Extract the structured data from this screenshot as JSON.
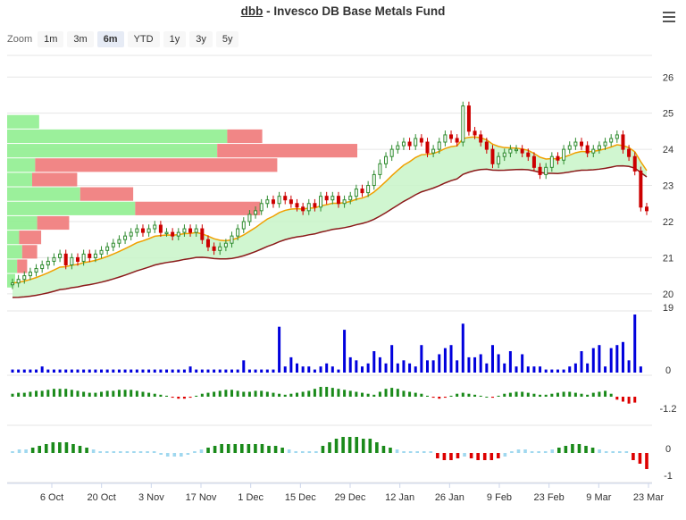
{
  "header": {
    "ticker": "dbb",
    "title_rest": " - Invesco DB Base Metals Fund"
  },
  "zoom": {
    "label": "Zoom",
    "buttons": [
      "1m",
      "3m",
      "6m",
      "YTD",
      "1y",
      "3y",
      "5y"
    ],
    "active": "6m"
  },
  "colors": {
    "up": "#2e8b2e",
    "down": "#cc0000",
    "volume": "#0000dd",
    "ema": "#f0a000",
    "base": "#8b1a1a",
    "cloud_up": "#c8f5c8",
    "cloud_down": "#f5c8c8",
    "vp_buy": "#90ee90",
    "vp_sell": "#f08080",
    "hist_pos": "#1a8a1a",
    "hist_neg": "#dd0000",
    "hist_neutral": "#a0d8ef"
  },
  "chart_data": {
    "type": "candlestick",
    "x_axis_labels": [
      "6 Oct",
      "20 Oct",
      "3 Nov",
      "17 Nov",
      "1 Dec",
      "15 Dec",
      "29 Dec",
      "12 Jan",
      "26 Jan",
      "9 Feb",
      "23 Feb",
      "9 Mar",
      "23 Mar"
    ],
    "price_axis": {
      "ticks": [
        "26",
        "25",
        "24",
        "23",
        "22",
        "21",
        "20"
      ],
      "range": [
        19.6,
        26.6
      ]
    },
    "volume_axis": {
      "ticks": [
        "19",
        "0"
      ]
    },
    "osc1_axis": {
      "ticks": [
        "-1.2"
      ]
    },
    "osc2_axis": {
      "ticks": [
        "0",
        "-1"
      ]
    },
    "price_close": [
      20.3,
      20.4,
      20.5,
      20.6,
      20.7,
      20.8,
      20.9,
      21.0,
      21.1,
      20.8,
      21.0,
      20.9,
      21.1,
      21.0,
      21.1,
      21.2,
      21.3,
      21.4,
      21.5,
      21.6,
      21.7,
      21.8,
      21.7,
      21.8,
      21.9,
      21.7,
      21.7,
      21.6,
      21.7,
      21.8,
      21.7,
      21.8,
      21.5,
      21.3,
      21.2,
      21.3,
      21.4,
      21.6,
      21.8,
      22.0,
      22.2,
      22.3,
      22.5,
      22.6,
      22.5,
      22.7,
      22.6,
      22.5,
      22.4,
      22.3,
      22.5,
      22.4,
      22.7,
      22.6,
      22.7,
      22.5,
      22.6,
      22.7,
      22.9,
      22.8,
      23.0,
      23.3,
      23.6,
      23.8,
      24.0,
      24.1,
      24.2,
      24.1,
      24.3,
      24.2,
      23.9,
      24.0,
      24.2,
      24.4,
      24.3,
      24.2,
      25.2,
      24.5,
      24.4,
      24.2,
      24.0,
      23.6,
      23.8,
      23.9,
      24.0,
      24.0,
      23.9,
      23.8,
      23.5,
      23.3,
      23.5,
      23.8,
      23.7,
      24.0,
      24.1,
      24.2,
      24.1,
      23.9,
      24.0,
      24.1,
      24.2,
      24.3,
      24.4,
      24.0,
      23.8,
      23.4,
      22.4,
      22.3
    ],
    "volume": [
      1,
      1,
      1,
      1,
      1,
      2,
      1,
      1,
      1,
      1,
      1,
      1,
      1,
      1,
      1,
      1,
      1,
      1,
      1,
      1,
      1,
      1,
      1,
      1,
      1,
      1,
      1,
      1,
      1,
      1,
      2,
      1,
      1,
      1,
      1,
      1,
      1,
      1,
      1,
      4,
      1,
      1,
      1,
      1,
      1,
      15,
      2,
      5,
      3,
      2,
      2,
      1,
      2,
      3,
      2,
      1,
      14,
      5,
      4,
      2,
      3,
      7,
      5,
      3,
      9,
      3,
      4,
      3,
      2,
      9,
      4,
      4,
      6,
      8,
      9,
      4,
      16,
      5,
      5,
      6,
      3,
      9,
      6,
      3,
      7,
      2,
      6,
      2,
      2,
      2,
      1,
      1,
      1,
      1,
      2,
      3,
      7,
      3,
      8,
      9,
      2,
      8,
      9,
      10,
      4,
      19,
      2
    ],
    "osc1": [
      0.3,
      0.4,
      0.4,
      0.5,
      0.6,
      0.6,
      0.7,
      0.8,
      0.8,
      0.8,
      0.7,
      0.6,
      0.5,
      0.4,
      0.4,
      0.5,
      0.6,
      0.6,
      0.7,
      0.7,
      0.7,
      0.6,
      0.5,
      0.4,
      0.3,
      0.2,
      0.1,
      -0.1,
      -0.2,
      -0.2,
      -0.1,
      0.1,
      0.3,
      0.4,
      0.5,
      0.6,
      0.7,
      0.7,
      0.6,
      0.5,
      0.5,
      0.6,
      0.6,
      0.5,
      0.4,
      0.3,
      0.2,
      0.3,
      0.4,
      0.5,
      0.6,
      0.8,
      1.0,
      1.0,
      0.9,
      0.8,
      0.7,
      0.6,
      0.5,
      0.4,
      0.3,
      0.2,
      0.5,
      0.8,
      0.9,
      0.8,
      0.6,
      0.5,
      0.4,
      0.3,
      0.1,
      -0.1,
      -0.2,
      -0.1,
      0.1,
      0.3,
      0.4,
      0.3,
      0.2,
      0.1,
      0.0,
      -0.1,
      0.1,
      0.3,
      0.4,
      0.5,
      0.5,
      0.4,
      0.3,
      0.2,
      0.2,
      0.3,
      0.4,
      0.5,
      0.5,
      0.4,
      0.3,
      0.2,
      0.4,
      0.5,
      0.6,
      0.3,
      -0.3,
      -0.5,
      -0.7,
      -0.6
    ],
    "osc2": [
      0.1,
      0.2,
      0.2,
      0.3,
      0.4,
      0.5,
      0.6,
      0.6,
      0.6,
      0.5,
      0.4,
      0.3,
      0.2,
      0.1,
      0.1,
      0.1,
      0.1,
      0.1,
      0.1,
      0.1,
      0.1,
      0.0,
      -0.1,
      -0.2,
      -0.2,
      -0.2,
      -0.1,
      0.1,
      0.2,
      0.3,
      0.4,
      0.5,
      0.5,
      0.5,
      0.5,
      0.5,
      0.5,
      0.5,
      0.4,
      0.4,
      0.3,
      0.2,
      0.1,
      0.1,
      0.1,
      0.1,
      0.4,
      0.6,
      0.8,
      0.9,
      0.9,
      0.9,
      0.8,
      0.8,
      0.6,
      0.4,
      0.3,
      0.2,
      0.1,
      0.1,
      0.1,
      0.1,
      0.0,
      -0.3,
      -0.4,
      -0.4,
      -0.3,
      -0.2,
      -0.3,
      -0.4,
      -0.4,
      -0.4,
      -0.3,
      -0.2,
      0.1,
      0.2,
      0.2,
      0.1,
      0.0,
      0.1,
      0.2,
      0.3,
      0.4,
      0.5,
      0.5,
      0.4,
      0.3,
      0.2,
      0.1,
      0.1,
      0.1,
      0.1,
      -0.4,
      -0.6,
      -0.9
    ],
    "volume_profile": [
      {
        "price_low": 24.55,
        "price_high": 24.95,
        "buy": 32,
        "sell": 0
      },
      {
        "price_low": 24.15,
        "price_high": 24.55,
        "buy": 220,
        "sell": 35
      },
      {
        "price_low": 23.75,
        "price_high": 24.15,
        "buy": 210,
        "sell": 140
      },
      {
        "price_low": 23.35,
        "price_high": 23.75,
        "buy": 28,
        "sell": 242
      },
      {
        "price_low": 22.95,
        "price_high": 23.35,
        "buy": 25,
        "sell": 45
      },
      {
        "price_low": 22.55,
        "price_high": 22.95,
        "buy": 73,
        "sell": 53
      },
      {
        "price_low": 22.15,
        "price_high": 22.55,
        "buy": 128,
        "sell": 125
      },
      {
        "price_low": 21.75,
        "price_high": 22.15,
        "buy": 30,
        "sell": 32
      },
      {
        "price_low": 21.35,
        "price_high": 21.75,
        "buy": 12,
        "sell": 22
      },
      {
        "price_low": 20.95,
        "price_high": 21.35,
        "buy": 15,
        "sell": 15
      },
      {
        "price_low": 20.55,
        "price_high": 20.95,
        "buy": 10,
        "sell": 10
      },
      {
        "price_low": 20.15,
        "price_high": 20.55,
        "buy": 8,
        "sell": 0
      }
    ]
  }
}
